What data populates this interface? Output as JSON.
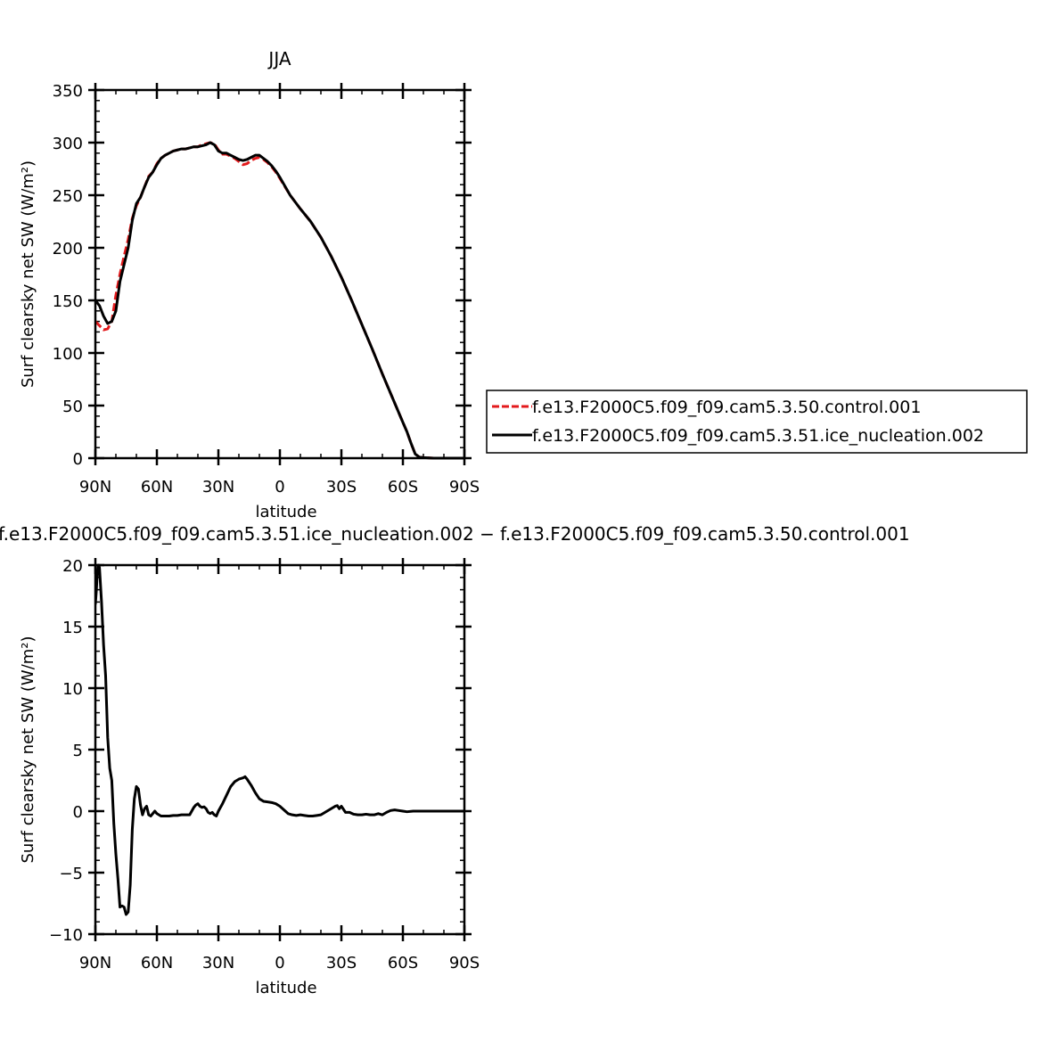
{
  "chart_data": [
    {
      "type": "line",
      "title": "JJA",
      "xlabel": "latitude",
      "ylabel": "Surf clearsky net SW (W/m²)",
      "xlim": [
        90,
        -90
      ],
      "ylim": [
        0,
        350
      ],
      "xticks": [
        90,
        60,
        30,
        0,
        -30,
        -60,
        -90
      ],
      "xtick_labels": [
        "90N",
        "60N",
        "30N",
        "0",
        "30S",
        "60S",
        "90S"
      ],
      "yticks": [
        0,
        50,
        100,
        150,
        200,
        250,
        300,
        350
      ],
      "ytick_labels": [
        "0",
        "50",
        "100",
        "150",
        "200",
        "250",
        "300",
        "350"
      ],
      "series": [
        {
          "name": "f.e13.F2000C5.f09_f09.cam5.3.50.control.001",
          "color": "#e31a1c",
          "dash": "dashed",
          "x": [
            90,
            88,
            86,
            84,
            82,
            80,
            78,
            76,
            74,
            72,
            70,
            68,
            66,
            64,
            62,
            60,
            58,
            56,
            54,
            52,
            50,
            48,
            46,
            44,
            42,
            40,
            38,
            36,
            34,
            32,
            30,
            28,
            26,
            24,
            22,
            20,
            18,
            16,
            14,
            12,
            10,
            8,
            6,
            4,
            2,
            0,
            -5,
            -10,
            -15,
            -20,
            -25,
            -30,
            -35,
            -40,
            -45,
            -50,
            -55,
            -60,
            -62,
            -64,
            -66,
            -68,
            -70,
            -75,
            -80,
            -90
          ],
          "y": [
            130,
            126,
            122,
            123,
            130,
            155,
            175,
            192,
            208,
            228,
            240,
            248,
            258,
            268,
            272,
            280,
            285,
            288,
            290,
            292,
            293,
            294,
            294,
            295,
            296,
            296,
            298,
            299,
            300,
            299,
            293,
            289,
            289,
            287,
            285,
            282,
            279,
            280,
            283,
            285,
            286,
            284,
            281,
            277,
            272,
            266,
            250,
            237,
            225,
            210,
            192,
            172,
            150,
            127,
            104,
            80,
            57,
            34,
            25,
            14,
            4,
            1,
            0.5,
            0,
            0,
            0
          ]
        },
        {
          "name": "f.e13.F2000C5.f09_f09.cam5.3.51.ice_nucleation.002",
          "color": "#000000",
          "dash": "solid",
          "x": [
            90,
            88,
            86,
            84,
            82,
            80,
            78,
            76,
            74,
            72,
            70,
            68,
            66,
            64,
            62,
            60,
            58,
            56,
            54,
            52,
            50,
            48,
            46,
            44,
            42,
            40,
            38,
            36,
            34,
            32,
            30,
            28,
            26,
            24,
            22,
            20,
            18,
            16,
            14,
            12,
            10,
            8,
            6,
            4,
            2,
            0,
            -5,
            -10,
            -15,
            -20,
            -25,
            -30,
            -35,
            -40,
            -45,
            -50,
            -55,
            -60,
            -62,
            -64,
            -66,
            -68,
            -70,
            -75,
            -80,
            -90
          ],
          "y": [
            150,
            145,
            135,
            128,
            130,
            140,
            168,
            184,
            200,
            226,
            242,
            248,
            258,
            267,
            272,
            279,
            285,
            288,
            290,
            292,
            293,
            294,
            294,
            295,
            296,
            296,
            297,
            298,
            300,
            298,
            292,
            290,
            290,
            288,
            286,
            284,
            283,
            284,
            286,
            288,
            288,
            285,
            282,
            278,
            273,
            267,
            250,
            237,
            225,
            210,
            192,
            172,
            150,
            127,
            104,
            80,
            57,
            34,
            25,
            14,
            4,
            1,
            0.5,
            0,
            0,
            0
          ]
        }
      ],
      "legend": {
        "placement": "right",
        "entries": [
          "f.e13.F2000C5.f09_f09.cam5.3.50.control.001",
          "f.e13.F2000C5.f09_f09.cam5.3.51.ice_nucleation.002"
        ]
      }
    },
    {
      "type": "line",
      "title": "f.e13.F2000C5.f09_f09.cam5.3.51.ice_nucleation.002 − f.e13.F2000C5.f09_f09.cam5.3.50.control.001",
      "xlabel": "latitude",
      "ylabel": "Surf clearsky net SW (W/m²)",
      "xlim": [
        90,
        -90
      ],
      "ylim": [
        -10,
        20
      ],
      "xticks": [
        90,
        60,
        30,
        0,
        -30,
        -60,
        -90
      ],
      "xtick_labels": [
        "90N",
        "60N",
        "30N",
        "0",
        "30S",
        "60S",
        "90S"
      ],
      "yticks": [
        -10,
        -5,
        0,
        5,
        10,
        15,
        20
      ],
      "ytick_labels": [
        "−10",
        "−5",
        "0",
        "5",
        "10",
        "15",
        "20"
      ],
      "series": [
        {
          "name": "difference",
          "color": "#000000",
          "dash": "solid",
          "x": [
            90,
            89.5,
            89,
            88.5,
            88,
            87,
            86,
            85,
            84,
            83,
            82,
            81,
            80,
            79,
            78,
            77,
            76,
            75,
            74,
            73,
            72,
            71,
            70,
            69,
            68,
            67,
            66,
            65,
            64,
            63,
            62,
            61,
            60,
            58,
            56,
            54,
            52,
            50,
            48,
            46,
            44,
            42,
            41,
            40,
            39,
            38,
            37,
            36,
            35,
            34,
            33,
            32,
            31,
            30,
            28,
            26,
            24,
            22,
            20,
            18,
            17,
            16,
            14,
            12,
            10,
            8,
            6,
            4,
            2,
            0,
            -2,
            -4,
            -6,
            -8,
            -10,
            -12,
            -14,
            -16,
            -18,
            -20,
            -22,
            -24,
            -26,
            -27,
            -28,
            -29,
            -30,
            -32,
            -34,
            -36,
            -38,
            -40,
            -42,
            -44,
            -46,
            -48,
            -50,
            -52,
            -54,
            -56,
            -58,
            -60,
            -62,
            -65,
            -70,
            -80,
            -90
          ],
          "y": [
            16.8,
            18,
            19.5,
            20,
            19.8,
            17,
            13.5,
            11,
            6,
            3.5,
            2.5,
            -1,
            -3.5,
            -5.5,
            -7.8,
            -7.7,
            -7.8,
            -8.4,
            -8.2,
            -6,
            -1.5,
            1,
            2,
            1.8,
            0.5,
            -0.3,
            0.2,
            0.4,
            -0.3,
            -0.4,
            -0.2,
            0,
            -0.2,
            -0.4,
            -0.4,
            -0.4,
            -0.35,
            -0.35,
            -0.3,
            -0.3,
            -0.3,
            0.3,
            0.5,
            0.6,
            0.4,
            0.3,
            0.35,
            0.2,
            -0.1,
            -0.2,
            -0.1,
            -0.3,
            -0.4,
            0,
            0.6,
            1.3,
            2,
            2.4,
            2.6,
            2.7,
            2.8,
            2.6,
            2.1,
            1.5,
            1.0,
            0.8,
            0.75,
            0.7,
            0.6,
            0.4,
            0.1,
            -0.2,
            -0.3,
            -0.35,
            -0.3,
            -0.35,
            -0.4,
            -0.4,
            -0.35,
            -0.3,
            -0.1,
            0.1,
            0.3,
            0.4,
            0.45,
            0.2,
            0.4,
            -0.1,
            -0.1,
            -0.25,
            -0.3,
            -0.3,
            -0.25,
            -0.3,
            -0.3,
            -0.2,
            -0.3,
            -0.1,
            0.05,
            0.1,
            0.05,
            0,
            -0.05,
            0,
            0,
            0,
            0
          ]
        }
      ]
    }
  ]
}
